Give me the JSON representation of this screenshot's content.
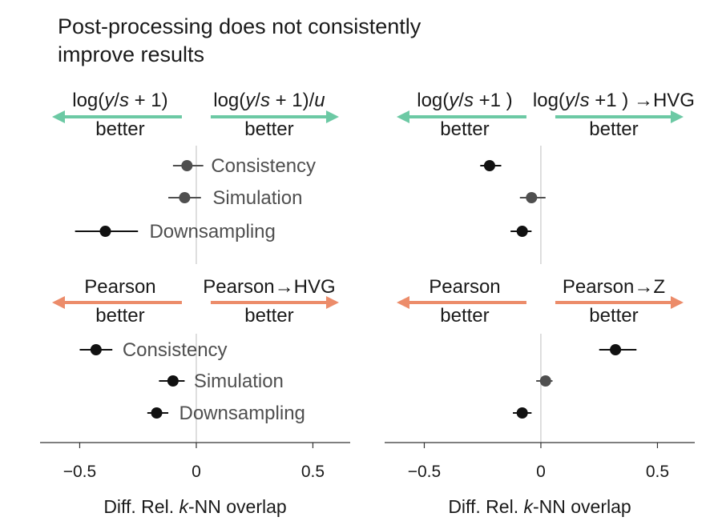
{
  "title_lines": [
    "Post-processing does not consistently",
    "improve results"
  ],
  "colors": {
    "green": "#6cc9a4",
    "orange": "#ec8c6a",
    "dark": "#111111",
    "gray": "#4f4f4f"
  },
  "x_label": {
    "prefix": "Diff. Rel. ",
    "italic": "k",
    "suffix": "-NN overlap"
  },
  "chart_data": [
    {
      "type": "scatter",
      "panel": "top-left",
      "arrow_color": "green",
      "left_header_text": "log(y/s + 1)",
      "right_header_text": "log(y/s + 1)/u",
      "left_header": [
        {
          "t": "log("
        },
        {
          "t": "y",
          "i": true
        },
        {
          "t": "/"
        },
        {
          "t": "s",
          "i": true
        },
        {
          "t": " + 1)"
        }
      ],
      "right_header": [
        {
          "t": "log("
        },
        {
          "t": "y",
          "i": true
        },
        {
          "t": "/"
        },
        {
          "t": "s",
          "i": true
        },
        {
          "t": " + 1)/"
        },
        {
          "t": "u",
          "i": true
        }
      ],
      "left_sub": "better",
      "right_sub": "better",
      "xlim": [
        -0.67,
        0.66
      ],
      "xticks": [
        -0.5,
        0,
        0.5
      ],
      "xtick_labels": [
        "−0.5",
        "0",
        "0.5"
      ],
      "points": [
        {
          "label": "Consistency",
          "value": -0.04,
          "ci": [
            -0.1,
            0.03
          ],
          "label_side": "right",
          "label_offset": 30,
          "color": "gray"
        },
        {
          "label": "Simulation",
          "value": -0.05,
          "ci": [
            -0.12,
            0.02
          ],
          "label_side": "right",
          "label_offset": 35,
          "color": "gray"
        },
        {
          "label": "Downsampling",
          "value": -0.39,
          "ci": [
            -0.52,
            -0.25
          ],
          "label_side": "right",
          "label_offset": 55,
          "color": "dark"
        }
      ]
    },
    {
      "type": "scatter",
      "panel": "top-right",
      "arrow_color": "green",
      "left_header_text": "log(y/s +1 )",
      "right_header_text": "log(y/s +1 ) →HVG",
      "left_header": [
        {
          "t": "log("
        },
        {
          "t": "y",
          "i": true
        },
        {
          "t": "/"
        },
        {
          "t": "s",
          "i": true
        },
        {
          "t": " +1 )"
        }
      ],
      "right_header": [
        {
          "t": "log("
        },
        {
          "t": "y",
          "i": true
        },
        {
          "t": "/"
        },
        {
          "t": "s",
          "i": true
        },
        {
          "t": " +1 ) →HVG"
        }
      ],
      "left_sub": "better",
      "right_sub": "better",
      "xlim": [
        -0.67,
        0.66
      ],
      "xticks": [
        -0.5,
        0,
        0.5
      ],
      "xtick_labels": [
        "−0.5",
        "0",
        "0.5"
      ],
      "points": [
        {
          "label": "",
          "value": -0.22,
          "ci": [
            -0.26,
            -0.17
          ],
          "label_side": "none",
          "label_offset": 0,
          "color": "dark"
        },
        {
          "label": "",
          "value": -0.04,
          "ci": [
            -0.09,
            0.02
          ],
          "label_side": "none",
          "label_offset": 0,
          "color": "gray"
        },
        {
          "label": "",
          "value": -0.08,
          "ci": [
            -0.13,
            -0.04
          ],
          "label_side": "none",
          "label_offset": 0,
          "color": "dark"
        }
      ]
    },
    {
      "type": "scatter",
      "panel": "bottom-left",
      "arrow_color": "orange",
      "left_header_text": "Pearson",
      "right_header_text": "Pearson→HVG",
      "left_header": [
        {
          "t": "Pearson"
        }
      ],
      "right_header": [
        {
          "t": "Pearson→HVG"
        }
      ],
      "left_sub": "better",
      "right_sub": "better",
      "xlim": [
        -0.67,
        0.66
      ],
      "xticks": [
        -0.5,
        0,
        0.5
      ],
      "xtick_labels": [
        "−0.5",
        "0",
        "0.5"
      ],
      "points": [
        {
          "label": "Consistency",
          "value": -0.43,
          "ci": [
            -0.5,
            -0.36
          ],
          "label_side": "right",
          "label_offset": 33,
          "color": "dark"
        },
        {
          "label": "Simulation",
          "value": -0.1,
          "ci": [
            -0.16,
            -0.05
          ],
          "label_side": "right",
          "label_offset": 26,
          "color": "dark"
        },
        {
          "label": "Downsampling",
          "value": -0.17,
          "ci": [
            -0.21,
            -0.12
          ],
          "label_side": "right",
          "label_offset": 28,
          "color": "dark"
        }
      ]
    },
    {
      "type": "scatter",
      "panel": "bottom-right",
      "arrow_color": "orange",
      "left_header_text": "Pearson",
      "right_header_text": "Pearson→Z",
      "left_header": [
        {
          "t": "Pearson"
        }
      ],
      "right_header": [
        {
          "t": "Pearson→Z"
        }
      ],
      "left_sub": "better",
      "right_sub": "better",
      "xlim": [
        -0.67,
        0.66
      ],
      "xticks": [
        -0.5,
        0,
        0.5
      ],
      "xtick_labels": [
        "−0.5",
        "0",
        "0.5"
      ],
      "points": [
        {
          "label": "",
          "value": 0.32,
          "ci": [
            0.25,
            0.41
          ],
          "label_side": "none",
          "label_offset": 0,
          "color": "dark"
        },
        {
          "label": "",
          "value": 0.02,
          "ci": [
            -0.02,
            0.05
          ],
          "label_side": "none",
          "label_offset": 0,
          "color": "gray"
        },
        {
          "label": "",
          "value": -0.08,
          "ci": [
            -0.12,
            -0.04
          ],
          "label_side": "none",
          "label_offset": 0,
          "color": "dark"
        }
      ]
    }
  ]
}
